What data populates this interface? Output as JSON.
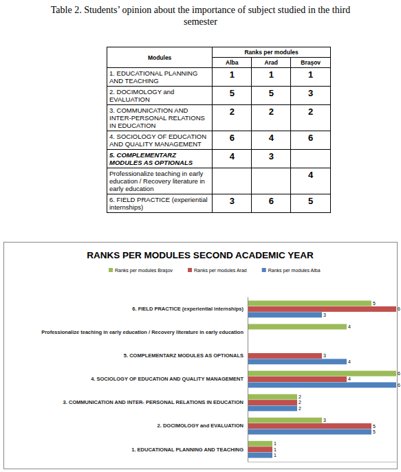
{
  "caption": "Table 2.  Students’ opinion about the importance of subject studied in the third semester",
  "table": {
    "header": {
      "modules": "Modules",
      "ranks": "Ranks per modules",
      "columns": [
        "Alba",
        "Arad",
        "Braşov"
      ]
    },
    "rows": [
      [
        "1. EDUCATIONAL PLANNING AND TEACHING",
        1,
        1,
        1
      ],
      [
        "2. DOCIMOLOGY and   EVALUATION",
        5,
        5,
        3
      ],
      [
        "3. COMMUNICATION AND INTER-PERSONAL RELATIONS IN EDUCATION",
        2,
        2,
        2
      ],
      [
        "4. SOCIOLOGY OF EDUCATION AND QUALITY MANAGEMENT",
        6,
        4,
        6
      ],
      [
        "5.  COMPLEMENTARZ MODULES AS OPTIONALS",
        4,
        3,
        null
      ],
      [
        "Professionalize teaching in early education / Recovery literature in early education",
        null,
        null,
        4
      ],
      [
        "6.  FIELD PRACTICE (experiential internships)",
        3,
        6,
        5
      ]
    ]
  },
  "chart_data": {
    "type": "bar",
    "orientation": "horizontal",
    "title": "RANKS PER MODULES  SECOND ACADEMIC YEAR",
    "categories": [
      "1. EDUCATIONAL PLANNING AND TEACHING",
      "2. DOCIMOLOGY and   EVALUATION",
      "3. COMMUNICATION AND INTER- PERSONAL RELATIONS IN EDUCATION",
      "4. SOCIOLOGY OF EDUCATION AND QUALITY MANAGEMENT",
      "5. COMPLEMENTARZ MODULES AS OPTIONALS",
      "Professionalize teaching in early education / Recovery literature in early education",
      "6. FIELD PRACTICE (experiential internships)"
    ],
    "series": [
      {
        "name": "Ranks per modules Alba",
        "color": "#4f81bd",
        "values": [
          1,
          5,
          2,
          6,
          4,
          null,
          3
        ]
      },
      {
        "name": "Ranks per modules Arad",
        "color": "#c0504d",
        "values": [
          1,
          5,
          2,
          4,
          3,
          null,
          6
        ]
      },
      {
        "name": "Ranks per modules Braşov",
        "color": "#9bbb59",
        "values": [
          1,
          3,
          2,
          6,
          null,
          4,
          5
        ]
      }
    ],
    "xlim": [
      0,
      6
    ],
    "legend": "top",
    "data_labels": true,
    "tick_labels": "y",
    "grid": false
  }
}
